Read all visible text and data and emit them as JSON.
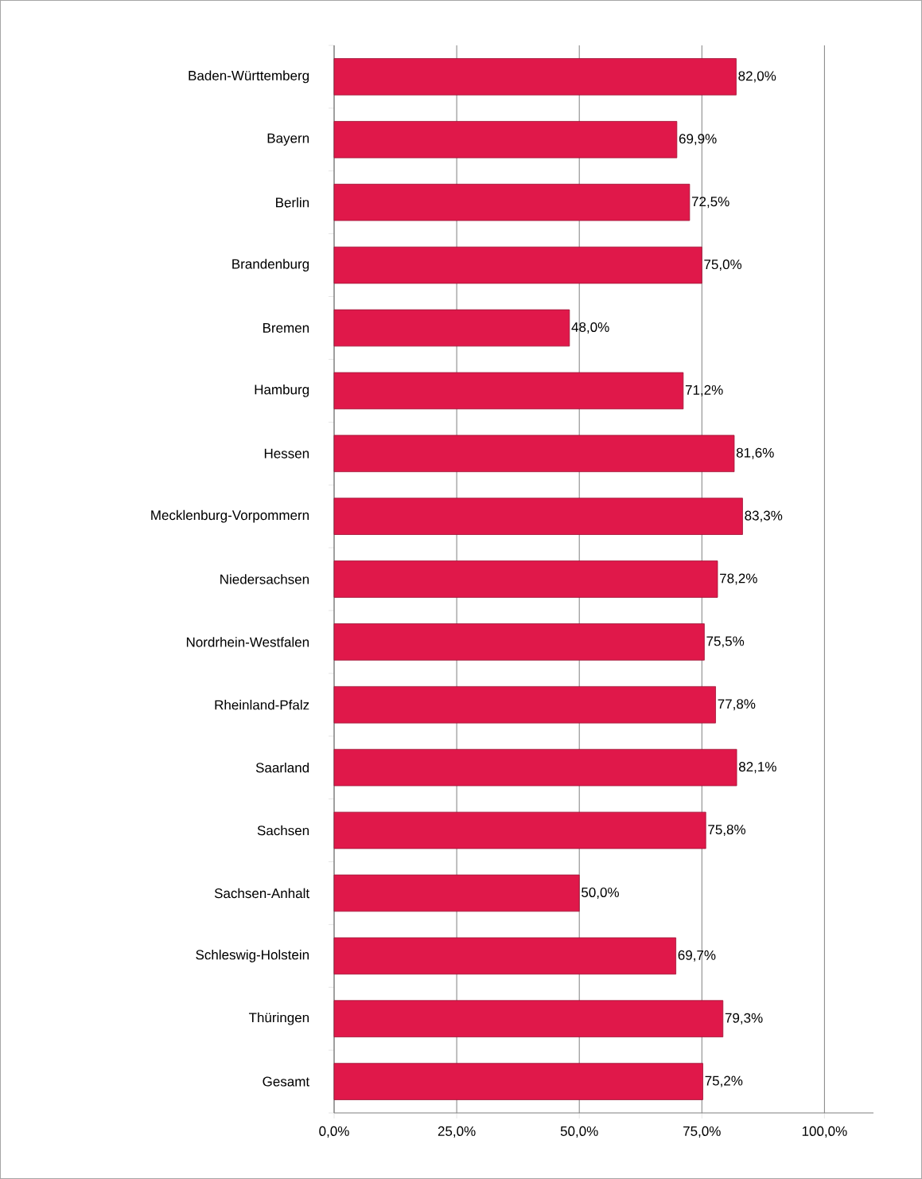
{
  "chart_data": {
    "type": "bar",
    "orientation": "horizontal",
    "categories": [
      "Baden-Württemberg",
      "Bayern",
      "Berlin",
      "Brandenburg",
      "Bremen",
      "Hamburg",
      "Hessen",
      "Mecklenburg-Vorpommern",
      "Niedersachsen",
      "Nordrhein-Westfalen",
      "Rheinland-Pfalz",
      "Saarland",
      "Sachsen",
      "Sachsen-Anhalt",
      "Schleswig-Holstein",
      "Thüringen",
      "Gesamt"
    ],
    "values": [
      82.0,
      69.9,
      72.5,
      75.0,
      48.0,
      71.2,
      81.6,
      83.3,
      78.2,
      75.5,
      77.8,
      82.1,
      75.8,
      50.0,
      69.7,
      79.3,
      75.2
    ],
    "value_labels": [
      "82,0%",
      "69,9%",
      "72,5%",
      "75,0%",
      "48,0%",
      "71,2%",
      "81,6%",
      "83,3%",
      "78,2%",
      "75,5%",
      "77,8%",
      "82,1%",
      "75,8%",
      "50,0%",
      "69,7%",
      "79,3%",
      "75,2%"
    ],
    "color": "#e0184a",
    "xlim": [
      0,
      110
    ],
    "xticks": [
      {
        "value": 0,
        "label": "0,0%"
      },
      {
        "value": 25,
        "label": "25,0%"
      },
      {
        "value": 50,
        "label": "50,0%"
      },
      {
        "value": 75,
        "label": "75,0%"
      },
      {
        "value": 100,
        "label": "100,0%"
      }
    ],
    "grid": "x"
  }
}
